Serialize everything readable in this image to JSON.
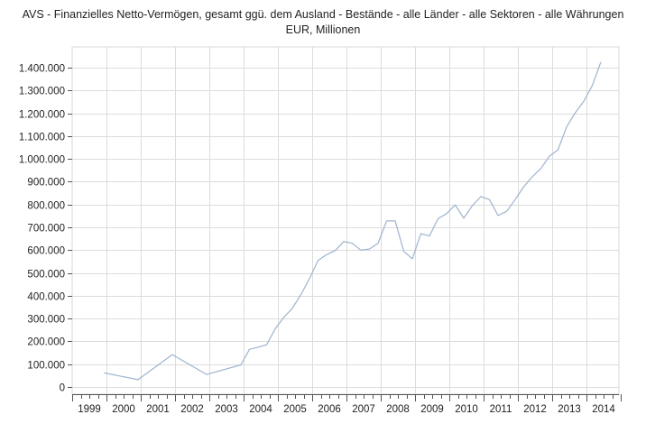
{
  "chart_data": {
    "type": "line",
    "title": "AVS - Finanzielles Netto-Vermögen, gesamt ggü. dem Ausland - Bestände - alle Länder - alle Sektoren - alle Währungen",
    "subtitle": "EUR, Millionen",
    "xlabel": "",
    "ylabel": "",
    "ylim": [
      0,
      1450000
    ],
    "yticks": [
      0,
      100000,
      200000,
      300000,
      400000,
      500000,
      600000,
      700000,
      800000,
      900000,
      1000000,
      1100000,
      1200000,
      1300000,
      1400000
    ],
    "ytick_labels": [
      "0",
      "100.000",
      "200.000",
      "300.000",
      "400.000",
      "500.000",
      "600.000",
      "700.000",
      "800.000",
      "900.000",
      "1.000.000",
      "1.100.000",
      "1.200.000",
      "1.300.000",
      "1.400.000"
    ],
    "xlim": [
      1999.0,
      2015.0
    ],
    "xtick_labels": [
      "1999",
      "2000",
      "2001",
      "2002",
      "2003",
      "2004",
      "2005",
      "2006",
      "2007",
      "2008",
      "2009",
      "2010",
      "2011",
      "2012",
      "2013",
      "2014"
    ],
    "grid": true,
    "line_color": "#9fb3cf",
    "x": [
      1999.92,
      2000.92,
      2001.92,
      2002.92,
      2003.92,
      2004.17,
      2004.42,
      2004.67,
      2004.92,
      2005.17,
      2005.42,
      2005.67,
      2005.92,
      2006.17,
      2006.42,
      2006.67,
      2006.92,
      2007.17,
      2007.42,
      2007.67,
      2007.92,
      2008.17,
      2008.42,
      2008.67,
      2008.92,
      2009.17,
      2009.42,
      2009.67,
      2009.92,
      2010.17,
      2010.42,
      2010.67,
      2010.92,
      2011.17,
      2011.42,
      2011.67,
      2011.92,
      2012.17,
      2012.42,
      2012.67,
      2012.92,
      2013.17,
      2013.42,
      2013.67,
      2013.92,
      2014.17,
      2014.42
    ],
    "y": [
      62000,
      32000,
      142000,
      55000,
      97000,
      165000,
      175000,
      185000,
      255000,
      305000,
      345000,
      405000,
      475000,
      555000,
      580000,
      598000,
      638000,
      630000,
      600000,
      605000,
      630000,
      728000,
      728000,
      595000,
      562000,
      672000,
      662000,
      738000,
      760000,
      798000,
      740000,
      795000,
      835000,
      822000,
      752000,
      770000,
      822000,
      878000,
      922000,
      958000,
      1012000,
      1040000,
      1140000,
      1202000,
      1252000,
      1322000,
      1425000
    ]
  }
}
